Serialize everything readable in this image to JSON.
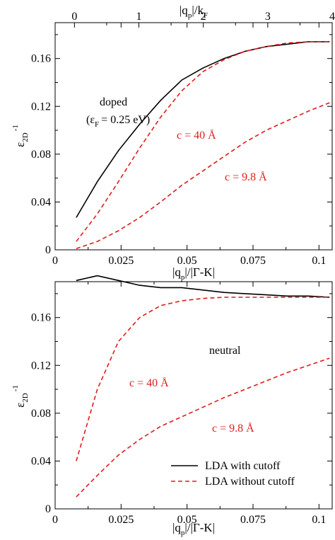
{
  "colors": {
    "black": "#000000",
    "red": "#e01b1b",
    "background": "#ffffff"
  },
  "chart_data": [
    {
      "type": "line",
      "panel": "top",
      "xlabel_main": "|q",
      "xlabel_sub": "p",
      "xlabel_rest": "|/|Γ-K|",
      "ylabel_main": "ε",
      "ylabel_sub": "2D",
      "ylabel_sup": "-1",
      "xlim": [
        0,
        0.105
      ],
      "ylim": [
        0,
        0.19
      ],
      "xticks": [
        0,
        0.025,
        0.05,
        0.075,
        0.1
      ],
      "xtick_labels": [
        "0",
        "0.025",
        "0.05",
        "0.075",
        "0.1"
      ],
      "yticks": [
        0,
        0.04,
        0.08,
        0.12,
        0.16
      ],
      "ytick_labels": [
        "0",
        "0.04",
        "0.08",
        "0.12",
        "0.16"
      ],
      "top_axis": {
        "label_main": "|q",
        "label_sub1": "p",
        "label_mid": "|/k",
        "label_sub2": "F",
        "ticks": [
          0,
          1,
          2,
          3,
          4
        ],
        "tick_labels": [
          "0",
          "1",
          "2",
          "3",
          "4"
        ],
        "xlim": [
          -0.3,
          4.0
        ]
      },
      "annotations": {
        "doped": "doped",
        "eps_main": "(ε",
        "eps_sub": "F",
        "eps_rest": "= 0.25 eV)",
        "c40": "c = 40 Å",
        "c98": "c = 9.8 Å"
      },
      "series": [
        {
          "style": "solid",
          "color": "#000000",
          "x": [
            0.008,
            0.016,
            0.024,
            0.032,
            0.04,
            0.048,
            0.056,
            0.064,
            0.072,
            0.08,
            0.088,
            0.096,
            0.104
          ],
          "y": [
            0.027,
            0.057,
            0.083,
            0.105,
            0.125,
            0.142,
            0.152,
            0.16,
            0.166,
            0.17,
            0.172,
            0.174,
            0.174
          ]
        },
        {
          "style": "dashed",
          "color": "#e01b1b",
          "x": [
            0.008,
            0.016,
            0.024,
            0.032,
            0.04,
            0.048,
            0.056,
            0.064,
            0.072,
            0.08,
            0.088,
            0.096,
            0.104
          ],
          "y": [
            0.007,
            0.03,
            0.057,
            0.085,
            0.111,
            0.133,
            0.149,
            0.159,
            0.166,
            0.17,
            0.173,
            0.174,
            0.174
          ]
        },
        {
          "style": "dashed",
          "color": "#e01b1b",
          "x": [
            0.008,
            0.016,
            0.024,
            0.032,
            0.04,
            0.048,
            0.056,
            0.064,
            0.072,
            0.08,
            0.088,
            0.096,
            0.104
          ],
          "y": [
            0.001,
            0.007,
            0.016,
            0.027,
            0.04,
            0.054,
            0.066,
            0.078,
            0.09,
            0.1,
            0.108,
            0.116,
            0.123
          ]
        }
      ]
    },
    {
      "type": "line",
      "panel": "bottom",
      "xlabel_main": "|q",
      "xlabel_sub": "p",
      "xlabel_rest": "|/|Γ-K|",
      "ylabel_main": "ε",
      "ylabel_sub": "2D",
      "ylabel_sup": "-1",
      "xlim": [
        0,
        0.105
      ],
      "ylim": [
        0,
        0.19
      ],
      "xticks": [
        0,
        0.025,
        0.05,
        0.075,
        0.1
      ],
      "xtick_labels": [
        "0",
        "0.025",
        "0.05",
        "0.075",
        "0.1"
      ],
      "yticks": [
        0,
        0.04,
        0.08,
        0.12,
        0.16
      ],
      "ytick_labels": [
        "0",
        "0.04",
        "0.08",
        "0.12",
        "0.16"
      ],
      "annotations": {
        "neutral": "neutral",
        "c40": "c = 40 Å",
        "c98": "c = 9.8 Å"
      },
      "legend": {
        "position": "bottom-right",
        "entries": [
          "LDA with cutoff",
          "LDA without cutoff"
        ]
      },
      "series": [
        {
          "name": "LDA with cutoff",
          "style": "solid",
          "color": "#000000",
          "x": [
            0.008,
            0.016,
            0.024,
            0.032,
            0.04,
            0.048,
            0.056,
            0.064,
            0.072,
            0.08,
            0.088,
            0.096,
            0.104
          ],
          "y": [
            0.191,
            0.195,
            0.191,
            0.187,
            0.185,
            0.185,
            0.183,
            0.181,
            0.18,
            0.179,
            0.178,
            0.178,
            0.177
          ]
        },
        {
          "name": "LDA without cutoff",
          "style": "dashed",
          "color": "#e01b1b",
          "x": [
            0.008,
            0.016,
            0.024,
            0.032,
            0.04,
            0.048,
            0.056,
            0.064,
            0.072,
            0.08,
            0.088,
            0.096,
            0.104
          ],
          "y": [
            0.04,
            0.1,
            0.14,
            0.16,
            0.17,
            0.174,
            0.176,
            0.177,
            0.177,
            0.177,
            0.177,
            0.177,
            0.177
          ]
        },
        {
          "style": "dashed",
          "color": "#e01b1b",
          "x": [
            0.008,
            0.016,
            0.024,
            0.032,
            0.04,
            0.048,
            0.056,
            0.064,
            0.072,
            0.08,
            0.088,
            0.096,
            0.104
          ],
          "y": [
            0.01,
            0.028,
            0.045,
            0.058,
            0.069,
            0.077,
            0.085,
            0.093,
            0.1,
            0.107,
            0.114,
            0.12,
            0.126
          ]
        }
      ]
    }
  ]
}
